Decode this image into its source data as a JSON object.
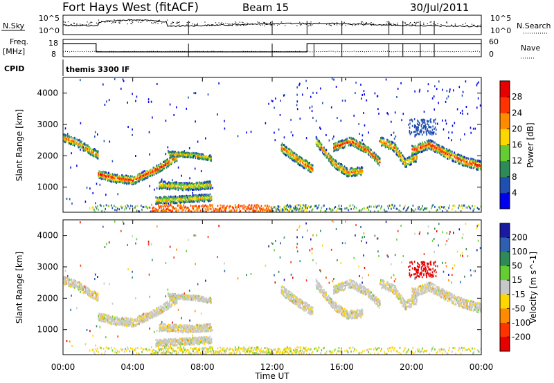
{
  "header": {
    "title": "Fort Hays West (fitACF)",
    "beam": "Beam 15",
    "date": "30/Jul/2011"
  },
  "sky_panel": {
    "left_label": "N.Sky",
    "right_label": "N.Search",
    "left_ticks": [
      "10^5",
      "10^0"
    ],
    "right_ticks": [
      "10^5",
      "10^0"
    ]
  },
  "freq_panel": {
    "left_label_line1": "Freq.",
    "left_label_line2": "[MHz]",
    "right_label": "Nave",
    "left_ticks": [
      "18",
      "8"
    ],
    "right_ticks": [
      "60",
      "0"
    ]
  },
  "cpid": {
    "label": "CPID",
    "value": "themis 3300 IF"
  },
  "chart_data": [
    {
      "type": "heatmap",
      "name": "power",
      "ylabel": "Slant Range [km]",
      "yticks": [
        "1000",
        "2000",
        "3000",
        "4000"
      ],
      "ylim": [
        200,
        4500
      ],
      "colorbar_label": "Power [dB]",
      "colorbar_ticks": [
        "4",
        "8",
        "12",
        "16",
        "20",
        "24",
        "28"
      ],
      "colorbar_colors": [
        "#0000ee",
        "#1f4fb0",
        "#2e8b57",
        "#66cc33",
        "#ffd700",
        "#ff8c00",
        "#ff3300",
        "#e60000"
      ]
    },
    {
      "type": "heatmap",
      "name": "velocity",
      "ylabel": "Slant Range [km]",
      "yticks": [
        "1000",
        "2000",
        "3000",
        "4000"
      ],
      "ylim": [
        200,
        4500
      ],
      "colorbar_label": "Velocity [m s^-1]",
      "colorbar_ticks": [
        "200",
        "100",
        "50",
        "15",
        "-15",
        "-50",
        "-100",
        "-200"
      ],
      "colorbar_colors": [
        "#1a1aa0",
        "#2e5fb0",
        "#2e8b57",
        "#66cc33",
        "#c8c8c8",
        "#ffd700",
        "#ff8c00",
        "#ff3300",
        "#e60000"
      ]
    }
  ],
  "xaxis": {
    "label": "Time UT",
    "ticks": [
      "00:00",
      "04:00",
      "08:00",
      "12:00",
      "16:00",
      "20:00",
      "00:00"
    ]
  }
}
